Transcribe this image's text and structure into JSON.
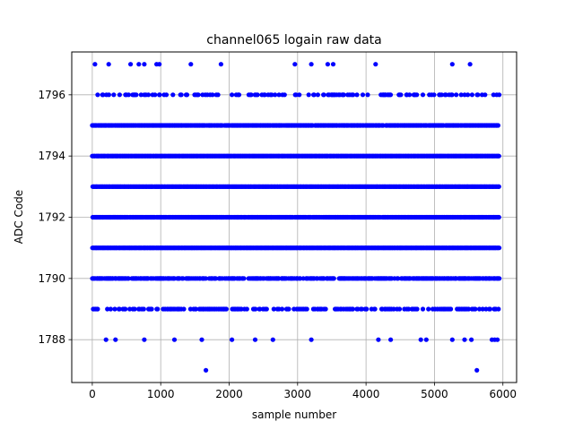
{
  "chart_data": {
    "type": "scatter",
    "title": "channel065 logain raw data",
    "xlabel": "sample number",
    "ylabel": "ADC Code",
    "xlim": [
      -300,
      6200
    ],
    "ylim": [
      1786.6,
      1797.4
    ],
    "xticks": [
      0,
      1000,
      2000,
      3000,
      4000,
      5000,
      6000
    ],
    "yticks": [
      1788,
      1790,
      1792,
      1794,
      1796
    ],
    "xtick_labels": [
      "0",
      "1000",
      "2000",
      "3000",
      "4000",
      "5000",
      "6000"
    ],
    "ytick_labels": [
      "1788",
      "1790",
      "1792",
      "1794",
      "1796"
    ],
    "grid": true,
    "marker_color": "#0000ff",
    "sample_range": [
      0,
      5950
    ],
    "levels": [
      {
        "y": 1797,
        "x": [
          40,
          240,
          560,
          680,
          760,
          940,
          980,
          1440,
          1880,
          2960,
          3200,
          3440,
          3520,
          4140,
          5260,
          5520
        ]
      },
      {
        "y": 1796,
        "density": 0.3
      },
      {
        "y": 1795,
        "density": 0.9
      },
      {
        "y": 1794,
        "density": 1.0
      },
      {
        "y": 1793,
        "density": 1.0
      },
      {
        "y": 1792,
        "density": 0.95
      },
      {
        "y": 1791,
        "density": 1.0
      },
      {
        "y": 1790,
        "density": 0.7
      },
      {
        "y": 1789,
        "density": 0.35
      },
      {
        "y": 1788,
        "x": [
          200,
          340,
          760,
          1200,
          1600,
          2040,
          2380,
          2640,
          3200,
          4180,
          4360,
          4800,
          4880,
          5260,
          5440,
          5540,
          5840,
          5880,
          5920
        ]
      },
      {
        "y": 1787,
        "x": [
          1660,
          5620
        ]
      }
    ]
  }
}
